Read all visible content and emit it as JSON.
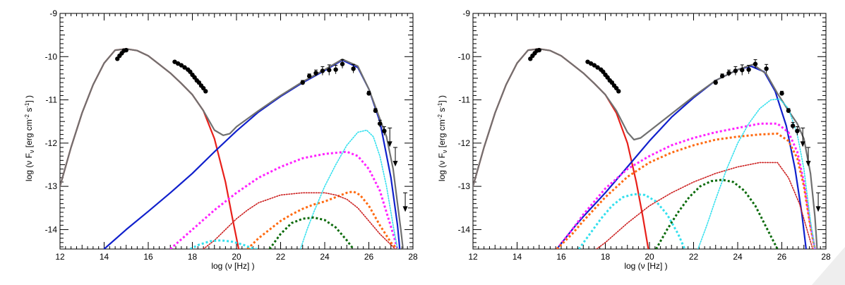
{
  "colors": {
    "background": "#ffffff",
    "axis": "#000000",
    "total_model": "#707070",
    "synchrotron": "#e8201a",
    "ssc": "#1020cc",
    "magenta": "#ff22ff",
    "orange": "#ff6a10",
    "dark_red": "#cc2020",
    "cyan": "#33e0ee",
    "dark_green": "#0a6a0a",
    "data": "#000000",
    "watermark": "#e6e6e6"
  },
  "chart_data": [
    {
      "type": "line",
      "panel": "left",
      "xlabel_main": "log (",
      "xlabel_nu": "ν",
      "xlabel_unit": " [Hz] )",
      "ylabel_main": "log (ν F",
      "ylabel_sub": "ν",
      "ylabel_unit": " [erg cm",
      "ylabel_exp1": "-2",
      "ylabel_s": " s",
      "ylabel_exp2": "-1",
      "ylabel_end": "] )",
      "xlim": [
        12,
        28
      ],
      "ylim": [
        -14.45,
        -9
      ],
      "xticks": [
        12,
        14,
        16,
        18,
        20,
        22,
        24,
        26,
        28
      ],
      "xtick_labels": [
        "12",
        "14",
        "16",
        "18",
        "20",
        "22",
        "24",
        "26",
        "28"
      ],
      "yticks": [
        -9,
        -10,
        -11,
        -12,
        -13,
        -14
      ],
      "ytick_labels": [
        "-9",
        "-10",
        "-11",
        "-12",
        "-13",
        "-14"
      ],
      "series": [
        {
          "name": "synchrotron",
          "style": "solid",
          "color": "#e8201a",
          "x": [
            12.0,
            12.5,
            13.0,
            13.5,
            14.0,
            14.5,
            15.0,
            15.5,
            16.0,
            16.5,
            17.0,
            17.5,
            18.0,
            18.5,
            19.0,
            19.5,
            19.8,
            20.1
          ],
          "y": [
            -13.0,
            -12.1,
            -11.3,
            -10.65,
            -10.15,
            -9.85,
            -9.82,
            -9.86,
            -9.98,
            -10.18,
            -10.38,
            -10.62,
            -10.88,
            -11.25,
            -11.9,
            -12.9,
            -13.7,
            -14.45
          ]
        },
        {
          "name": "ssc",
          "style": "solid",
          "color": "#1020cc",
          "x": [
            14.0,
            15.0,
            16.0,
            17.0,
            18.0,
            19.0,
            20.0,
            21.0,
            22.0,
            23.0,
            24.0,
            24.8,
            25.5,
            26.0,
            26.5,
            27.0,
            27.3,
            27.4
          ],
          "y": [
            -14.45,
            -14.0,
            -13.58,
            -13.15,
            -12.7,
            -12.2,
            -11.72,
            -11.28,
            -10.92,
            -10.6,
            -10.32,
            -10.08,
            -10.25,
            -10.75,
            -11.5,
            -12.8,
            -13.9,
            -14.45
          ]
        },
        {
          "name": "total",
          "style": "solid",
          "color": "#707070",
          "x": [
            12.0,
            12.5,
            13.0,
            13.5,
            14.0,
            14.5,
            15.0,
            15.5,
            16.0,
            16.5,
            17.0,
            17.5,
            18.0,
            18.5,
            19.0,
            19.4,
            19.7,
            20.0,
            21.0,
            22.0,
            23.0,
            24.0,
            24.8,
            25.5,
            26.0,
            26.4,
            26.8,
            27.1,
            27.3,
            27.45,
            27.55
          ],
          "y": [
            -13.0,
            -12.1,
            -11.3,
            -10.65,
            -10.15,
            -9.85,
            -9.82,
            -9.86,
            -9.98,
            -10.18,
            -10.38,
            -10.62,
            -10.88,
            -11.25,
            -11.7,
            -11.82,
            -11.78,
            -11.62,
            -11.25,
            -10.9,
            -10.58,
            -10.3,
            -10.06,
            -10.22,
            -10.75,
            -11.3,
            -11.85,
            -12.6,
            -13.4,
            -14.0,
            -14.45
          ]
        },
        {
          "name": "magenta",
          "style": "dashed",
          "color": "#ff22ff",
          "x": [
            17.0,
            18.0,
            19.0,
            20.0,
            21.0,
            22.0,
            23.0,
            24.0,
            25.0,
            25.5,
            26.0,
            26.5,
            26.8,
            27.1,
            27.3
          ],
          "y": [
            -14.45,
            -14.0,
            -13.55,
            -13.15,
            -12.8,
            -12.55,
            -12.35,
            -12.25,
            -12.2,
            -12.3,
            -12.6,
            -13.1,
            -13.6,
            -14.1,
            -14.45
          ]
        },
        {
          "name": "orange",
          "style": "dashed",
          "color": "#ff6a10",
          "x": [
            20.5,
            21.0,
            21.5,
            22.0,
            22.5,
            23.0,
            23.5,
            24.0,
            24.5,
            25.0,
            25.3,
            25.6,
            26.0,
            26.5,
            27.0,
            27.3
          ],
          "y": [
            -14.45,
            -14.2,
            -14.0,
            -13.8,
            -13.65,
            -13.52,
            -13.42,
            -13.35,
            -13.25,
            -13.15,
            -13.12,
            -13.2,
            -13.45,
            -13.9,
            -14.3,
            -14.45
          ]
        },
        {
          "name": "dark_red",
          "style": "dotted",
          "color": "#cc2020",
          "x": [
            18.5,
            19.0,
            19.5,
            20.0,
            20.5,
            21.0,
            22.0,
            23.0,
            24.0,
            24.5,
            25.0,
            25.5,
            26.0,
            26.5,
            27.0,
            27.2
          ],
          "y": [
            -14.45,
            -14.25,
            -14.0,
            -13.75,
            -13.55,
            -13.38,
            -13.2,
            -13.15,
            -13.15,
            -13.2,
            -13.3,
            -13.5,
            -13.8,
            -14.1,
            -14.35,
            -14.45
          ]
        },
        {
          "name": "cyan",
          "style": "dotted",
          "color": "#33e0ee",
          "x": [
            22.9,
            23.2,
            23.5,
            24.0,
            24.5,
            25.0,
            25.5,
            25.9,
            26.2,
            26.5,
            26.8,
            27.1,
            27.3
          ],
          "y": [
            -14.45,
            -14.0,
            -13.6,
            -13.0,
            -12.5,
            -12.05,
            -11.75,
            -11.7,
            -11.85,
            -12.3,
            -13.0,
            -13.9,
            -14.45
          ]
        },
        {
          "name": "cyan_low",
          "style": "dashed",
          "color": "#33e0ee",
          "x": [
            17.9,
            18.3,
            18.8,
            19.3,
            19.8,
            20.3,
            20.8,
            21.0
          ],
          "y": [
            -14.45,
            -14.35,
            -14.27,
            -14.25,
            -14.28,
            -14.35,
            -14.45,
            -14.45
          ]
        },
        {
          "name": "dark_green",
          "style": "dashed",
          "color": "#0a6a0a",
          "x": [
            21.5,
            22.0,
            22.5,
            23.0,
            23.5,
            24.0,
            24.5,
            25.0,
            25.3
          ],
          "y": [
            -14.45,
            -14.1,
            -13.85,
            -13.75,
            -13.72,
            -13.78,
            -13.95,
            -14.25,
            -14.45
          ]
        }
      ],
      "data_points": {
        "x": [
          14.6,
          14.7,
          14.8,
          14.9,
          15.0,
          17.2,
          17.35,
          17.5,
          17.65,
          17.8,
          17.9,
          18.0,
          18.1,
          18.2,
          18.3,
          18.4,
          18.5,
          18.6,
          23.0,
          23.3,
          23.6,
          23.9,
          24.2,
          24.5,
          24.8,
          25.3,
          26.0,
          26.3,
          26.5,
          26.7
        ],
        "y": [
          -10.05,
          -9.98,
          -9.92,
          -9.86,
          -9.85,
          -10.12,
          -10.16,
          -10.2,
          -10.25,
          -10.3,
          -10.35,
          -10.42,
          -10.48,
          -10.55,
          -10.6,
          -10.67,
          -10.73,
          -10.8,
          -10.6,
          -10.45,
          -10.38,
          -10.33,
          -10.31,
          -10.3,
          -10.17,
          -10.28,
          -10.85,
          -11.25,
          -11.55,
          -11.72
        ],
        "yerr": [
          0,
          0,
          0,
          0,
          0,
          0,
          0,
          0,
          0,
          0,
          0,
          0,
          0,
          0,
          0,
          0,
          0,
          0,
          0.05,
          0.05,
          0.07,
          0.1,
          0.12,
          0.1,
          0.1,
          0.1,
          0.05,
          0.05,
          0.08,
          0.1
        ]
      },
      "upper_limits": {
        "x": [
          26.95,
          27.2,
          27.65
        ],
        "y": [
          -11.65,
          -12.1,
          -13.15
        ]
      }
    },
    {
      "type": "line",
      "panel": "right",
      "xlabel_main": "log (",
      "xlabel_nu": "ν",
      "xlabel_unit": " [Hz] )",
      "ylabel_main": "log (ν F",
      "ylabel_sub": "ν",
      "ylabel_unit": " [erg cm",
      "ylabel_exp1": "-2",
      "ylabel_s": " s",
      "ylabel_exp2": "-1",
      "ylabel_end": "] )",
      "xlim": [
        12,
        28
      ],
      "ylim": [
        -14.45,
        -9
      ],
      "xticks": [
        12,
        14,
        16,
        18,
        20,
        22,
        24,
        26,
        28
      ],
      "xtick_labels": [
        "12",
        "14",
        "16",
        "18",
        "20",
        "22",
        "24",
        "26",
        "28"
      ],
      "yticks": [
        -9,
        -10,
        -11,
        -12,
        -13,
        -14
      ],
      "ytick_labels": [
        "-9",
        "-10",
        "-11",
        "-12",
        "-13",
        "-14"
      ],
      "series": [
        {
          "name": "synchrotron",
          "style": "solid",
          "color": "#e8201a",
          "x": [
            12.0,
            12.5,
            13.0,
            13.5,
            14.0,
            14.5,
            15.0,
            15.5,
            16.0,
            16.5,
            17.0,
            17.5,
            18.0,
            18.5,
            19.0,
            19.4,
            19.7,
            19.95
          ],
          "y": [
            -13.0,
            -12.1,
            -11.3,
            -10.65,
            -10.15,
            -9.85,
            -9.82,
            -9.86,
            -9.98,
            -10.18,
            -10.38,
            -10.62,
            -10.88,
            -11.3,
            -12.0,
            -12.9,
            -13.7,
            -14.45
          ]
        },
        {
          "name": "ssc",
          "style": "solid",
          "color": "#1020cc",
          "x": [
            15.8,
            16.5,
            17.0,
            18.0,
            19.0,
            20.0,
            21.0,
            22.0,
            23.0,
            24.0,
            24.6,
            25.2,
            25.7,
            26.2,
            26.6,
            26.9,
            27.1
          ],
          "y": [
            -14.45,
            -14.0,
            -13.7,
            -13.15,
            -12.55,
            -11.95,
            -11.4,
            -10.95,
            -10.55,
            -10.3,
            -10.22,
            -10.35,
            -10.8,
            -11.6,
            -12.6,
            -13.6,
            -14.45
          ]
        },
        {
          "name": "total",
          "style": "solid",
          "color": "#707070",
          "x": [
            12.0,
            12.5,
            13.0,
            13.5,
            14.0,
            14.5,
            15.0,
            15.5,
            16.0,
            16.5,
            17.0,
            17.5,
            18.0,
            18.5,
            19.0,
            19.3,
            19.6,
            20.0,
            21.0,
            22.0,
            23.0,
            24.0,
            24.7,
            25.3,
            25.8,
            26.3,
            26.7,
            27.0,
            27.3,
            27.5,
            27.6
          ],
          "y": [
            -13.0,
            -12.1,
            -11.3,
            -10.65,
            -10.15,
            -9.85,
            -9.82,
            -9.86,
            -9.98,
            -10.18,
            -10.38,
            -10.62,
            -10.88,
            -11.25,
            -11.75,
            -11.92,
            -11.88,
            -11.72,
            -11.32,
            -10.92,
            -10.55,
            -10.3,
            -10.18,
            -10.4,
            -10.85,
            -11.25,
            -11.55,
            -11.9,
            -12.7,
            -13.7,
            -14.45
          ]
        },
        {
          "name": "magenta",
          "style": "dashed",
          "color": "#ff22ff",
          "x": [
            15.8,
            16.5,
            17.0,
            18.0,
            19.0,
            20.0,
            21.0,
            22.0,
            23.0,
            24.0,
            25.0,
            25.8,
            26.3,
            26.7,
            27.0,
            27.3,
            27.5
          ],
          "y": [
            -14.45,
            -14.0,
            -13.65,
            -13.05,
            -12.6,
            -12.3,
            -12.05,
            -11.88,
            -11.75,
            -11.65,
            -11.55,
            -11.55,
            -11.75,
            -12.2,
            -12.9,
            -13.9,
            -14.45
          ]
        },
        {
          "name": "orange",
          "style": "dashed",
          "color": "#ff6a10",
          "x": [
            15.8,
            16.5,
            17.0,
            18.0,
            19.0,
            20.0,
            21.0,
            22.0,
            23.0,
            24.0,
            25.0,
            25.8,
            26.3,
            26.7,
            27.0,
            27.3,
            27.5
          ],
          "y": [
            -14.45,
            -14.1,
            -13.8,
            -13.25,
            -12.78,
            -12.45,
            -12.22,
            -12.05,
            -11.92,
            -11.85,
            -11.8,
            -11.78,
            -11.95,
            -12.35,
            -13.0,
            -13.95,
            -14.45
          ]
        },
        {
          "name": "dark_red",
          "style": "dotted",
          "color": "#cc2020",
          "x": [
            17.6,
            18.0,
            19.0,
            20.0,
            21.0,
            22.0,
            23.0,
            24.0,
            25.0,
            25.8,
            26.3,
            26.8,
            27.2,
            27.4
          ],
          "y": [
            -14.45,
            -14.3,
            -13.85,
            -13.45,
            -13.15,
            -12.9,
            -12.7,
            -12.55,
            -12.45,
            -12.45,
            -12.8,
            -13.4,
            -14.1,
            -14.45
          ]
        },
        {
          "name": "cyan",
          "style": "dotted",
          "color": "#33e0ee",
          "x": [
            22.2,
            22.6,
            23.0,
            23.5,
            24.0,
            24.5,
            25.0,
            25.5,
            25.9,
            26.3,
            26.7,
            27.0,
            27.3,
            27.5
          ],
          "y": [
            -14.45,
            -13.9,
            -13.3,
            -12.6,
            -12.0,
            -11.55,
            -11.2,
            -11.0,
            -10.98,
            -11.2,
            -11.8,
            -12.6,
            -13.8,
            -14.45
          ]
        },
        {
          "name": "cyan_low",
          "style": "dashed",
          "color": "#33e0ee",
          "x": [
            16.8,
            17.3,
            17.8,
            18.3,
            18.8,
            19.3,
            19.8,
            20.3,
            20.8,
            21.3,
            21.6
          ],
          "y": [
            -14.45,
            -14.1,
            -13.75,
            -13.45,
            -13.25,
            -13.18,
            -13.2,
            -13.35,
            -13.65,
            -14.1,
            -14.45
          ]
        },
        {
          "name": "dark_green",
          "style": "dashed",
          "color": "#0a6a0a",
          "x": [
            20.3,
            20.8,
            21.3,
            21.8,
            22.3,
            22.8,
            23.3,
            23.8,
            24.3,
            24.8,
            25.3,
            25.8
          ],
          "y": [
            -14.45,
            -14.0,
            -13.6,
            -13.25,
            -13.0,
            -12.88,
            -12.85,
            -12.9,
            -13.1,
            -13.45,
            -13.95,
            -14.45
          ]
        }
      ],
      "data_points": {
        "x": [
          14.6,
          14.7,
          14.8,
          14.9,
          15.0,
          17.2,
          17.35,
          17.5,
          17.65,
          17.8,
          17.9,
          18.0,
          18.1,
          18.2,
          18.3,
          18.4,
          18.5,
          18.6,
          23.0,
          23.3,
          23.6,
          23.9,
          24.2,
          24.5,
          24.8,
          25.3,
          26.0,
          26.3,
          26.5,
          26.7
        ],
        "y": [
          -10.05,
          -9.98,
          -9.92,
          -9.86,
          -9.85,
          -10.12,
          -10.16,
          -10.2,
          -10.25,
          -10.3,
          -10.35,
          -10.42,
          -10.48,
          -10.55,
          -10.6,
          -10.67,
          -10.73,
          -10.8,
          -10.6,
          -10.45,
          -10.38,
          -10.33,
          -10.31,
          -10.3,
          -10.17,
          -10.28,
          -10.85,
          -11.25,
          -11.6,
          -11.72
        ],
        "yerr": [
          0,
          0,
          0,
          0,
          0,
          0,
          0,
          0,
          0,
          0,
          0,
          0,
          0,
          0,
          0,
          0,
          0,
          0,
          0.05,
          0.05,
          0.07,
          0.1,
          0.12,
          0.1,
          0.1,
          0.1,
          0.05,
          0.05,
          0.08,
          0.1
        ]
      },
      "upper_limits": {
        "x": [
          26.95,
          27.2,
          27.65
        ],
        "y": [
          -11.65,
          -12.1,
          -13.15
        ]
      }
    }
  ]
}
